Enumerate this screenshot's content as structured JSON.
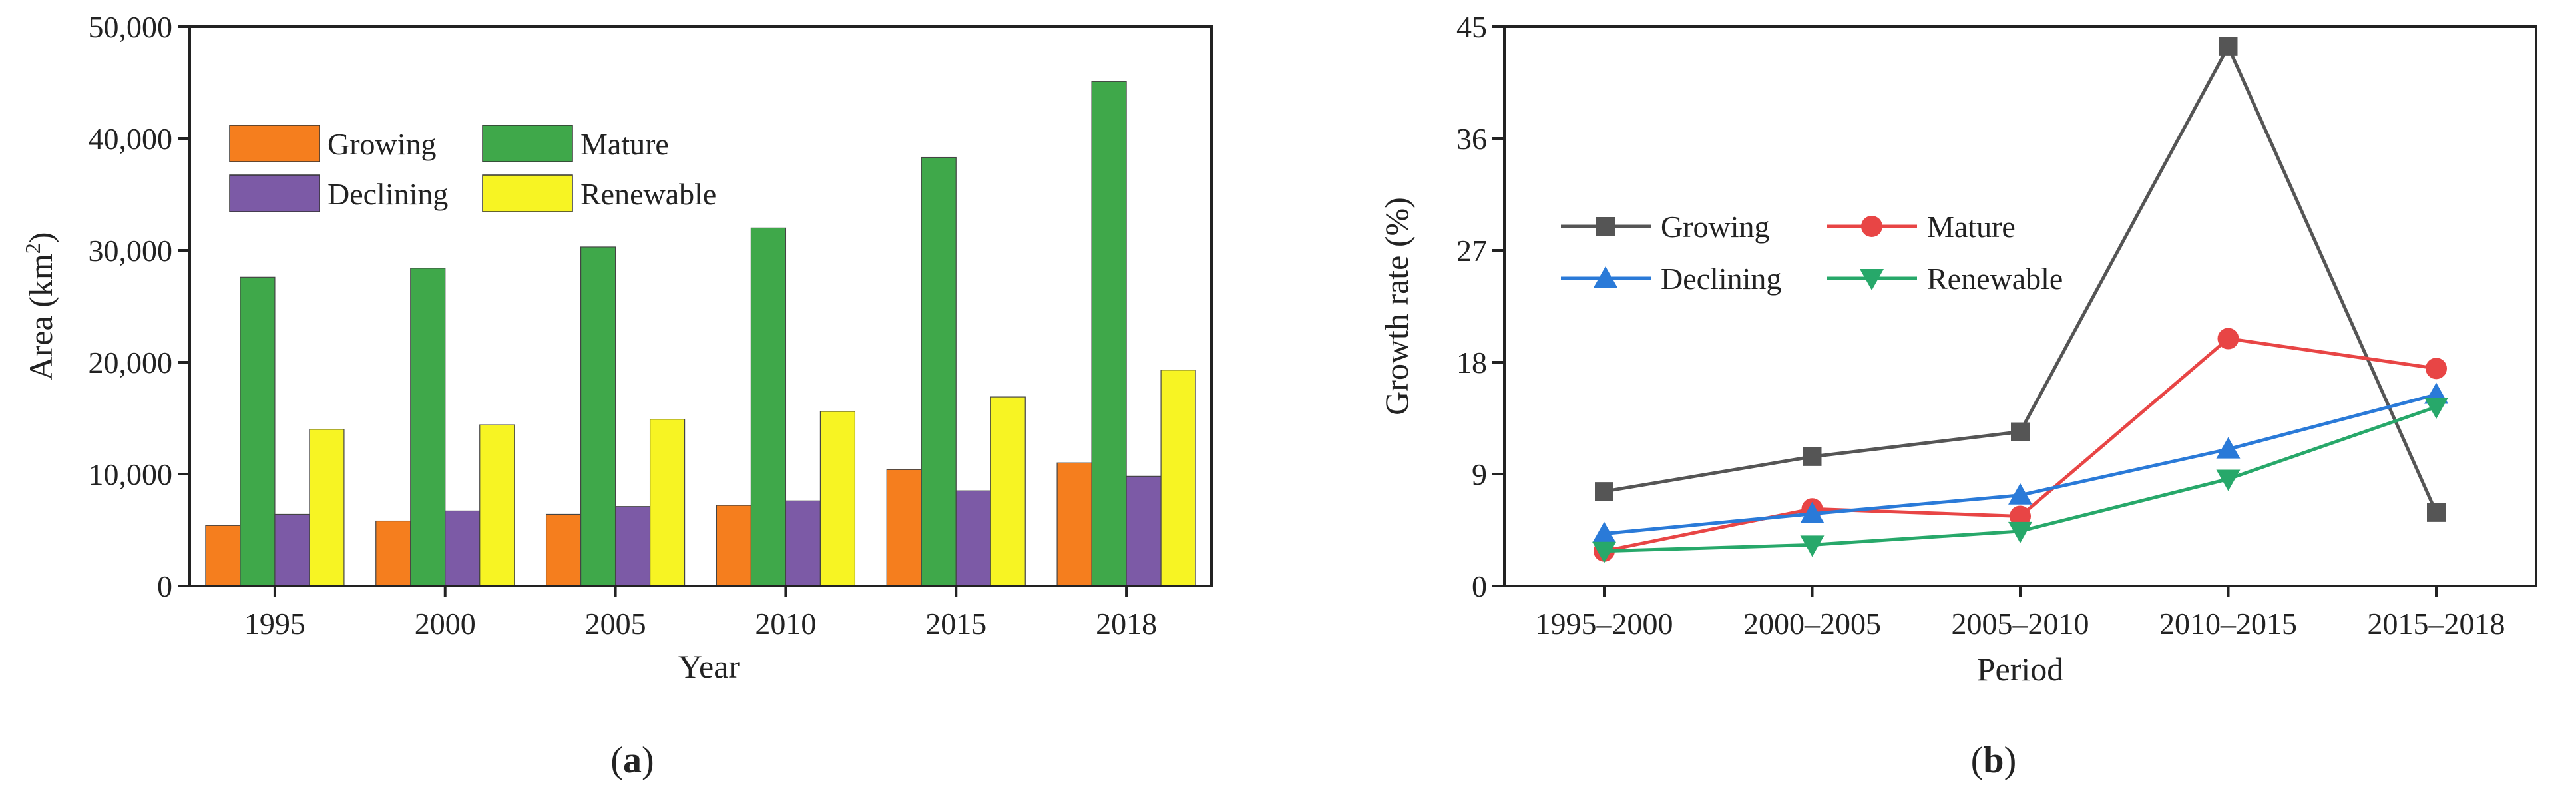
{
  "colors": {
    "growing_bar": "#f57e1e",
    "mature_bar": "#3fa84a",
    "declining_bar": "#7c5aa6",
    "renewable_bar": "#f7f423",
    "growing_line": "#555555",
    "mature_line": "#e84545",
    "declining_line": "#2a7ad8",
    "renewable_line": "#27a86a"
  },
  "chart_data": [
    {
      "type": "bar",
      "panel_label": "(a)",
      "panel_letter": "a",
      "title": "",
      "xlabel": "Year",
      "ylabel_main": "Area (km",
      "ylabel_sup": "2",
      "ylabel_end": ")",
      "ylim": [
        0,
        50000
      ],
      "yticks": [
        0,
        10000,
        20000,
        30000,
        40000,
        50000
      ],
      "ytick_labels": [
        "0",
        "10,000",
        "20,000",
        "30,000",
        "40,000",
        "50,000"
      ],
      "categories": [
        "1995",
        "2000",
        "2005",
        "2010",
        "2015",
        "2018"
      ],
      "legend_position": "top-left",
      "series": [
        {
          "name": "Growing",
          "values": [
            5400,
            5800,
            6400,
            7200,
            10400,
            11000
          ]
        },
        {
          "name": "Mature",
          "values": [
            27600,
            28400,
            30300,
            32000,
            38300,
            45100
          ]
        },
        {
          "name": "Declining",
          "values": [
            6400,
            6700,
            7100,
            7600,
            8500,
            9800
          ]
        },
        {
          "name": "Renewable",
          "values": [
            14000,
            14400,
            14900,
            15600,
            16900,
            19300
          ]
        }
      ]
    },
    {
      "type": "line",
      "panel_label": "(b)",
      "panel_letter": "b",
      "title": "",
      "xlabel": "Period",
      "ylabel": "Growth rate (%)",
      "ylim": [
        0,
        45
      ],
      "yticks": [
        0,
        9,
        18,
        27,
        36,
        45
      ],
      "ytick_labels": [
        "0",
        "9",
        "18",
        "27",
        "36",
        "45"
      ],
      "categories": [
        "1995–2000",
        "2000–2005",
        "2005–2010",
        "2010–2015",
        "2015–2018"
      ],
      "legend_position": "center-left",
      "series": [
        {
          "name": "Growing",
          "marker": "square",
          "values": [
            7.6,
            10.4,
            12.4,
            43.4,
            5.9
          ]
        },
        {
          "name": "Mature",
          "marker": "circle",
          "values": [
            2.8,
            6.2,
            5.6,
            19.9,
            17.5
          ]
        },
        {
          "name": "Declining",
          "marker": "triangle-up",
          "values": [
            4.2,
            5.8,
            7.3,
            11.0,
            15.4
          ]
        },
        {
          "name": "Renewable",
          "marker": "triangle-down",
          "values": [
            2.8,
            3.3,
            4.4,
            8.6,
            14.4
          ]
        }
      ]
    }
  ]
}
